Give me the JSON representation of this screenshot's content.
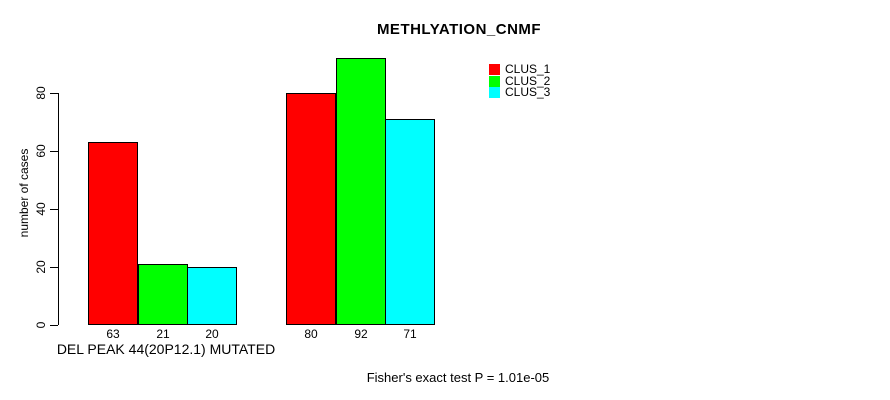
{
  "title": "METHLYATION_CNMF",
  "ylabel": "number of cases",
  "xlabel": "DEL PEAK 44(20P12.1) MUTATED",
  "footer": "Fisher's exact test P = 1.01e-05",
  "colors": {
    "clus1": "#ff0000",
    "clus2": "#00ff00",
    "clus3": "#00ffff",
    "axis": "#000000",
    "background": "#ffffff"
  },
  "legend": {
    "items": [
      {
        "label": "CLUS_1",
        "color": "#ff0000"
      },
      {
        "label": "CLUS_2",
        "color": "#00ff00"
      },
      {
        "label": "CLUS_3",
        "color": "#00ffff"
      }
    ]
  },
  "chart_data": {
    "type": "bar",
    "title": "METHLYATION_CNMF",
    "xlabel": "DEL PEAK 44(20P12.1) MUTATED",
    "ylabel": "number of cases",
    "annotation": "Fisher's exact test P = 1.01e-05",
    "categories": [
      "DEL PEAK 44(20P12.1) MUTATED",
      ""
    ],
    "series": [
      {
        "name": "CLUS_1",
        "color": "#ff0000",
        "values": [
          63,
          80
        ]
      },
      {
        "name": "CLUS_2",
        "color": "#00ff00",
        "values": [
          21,
          92
        ]
      },
      {
        "name": "CLUS_3",
        "color": "#00ffff",
        "values": [
          20,
          71
        ]
      }
    ],
    "bar_labels_shown": true,
    "yticks": [
      0,
      20,
      40,
      60,
      80
    ],
    "ylim": [
      0,
      92
    ],
    "grid": false,
    "legend_position": "top-right"
  }
}
